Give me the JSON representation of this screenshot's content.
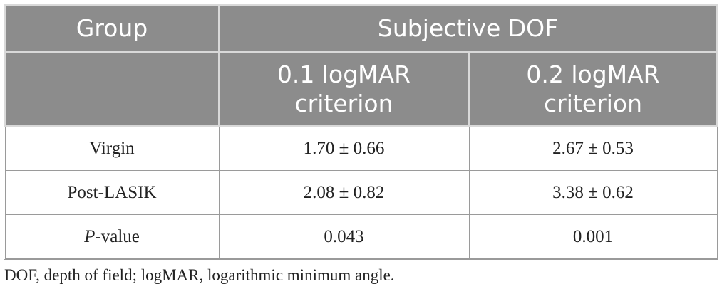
{
  "table": {
    "header": {
      "group_label": "Group",
      "span_label": "Subjective DOF",
      "sub_col_1": "0.1 logMAR criterion",
      "sub_col_2": "0.2 logMAR criterion"
    },
    "rows": [
      {
        "group": "Virgin",
        "col_1": "1.70 ± 0.66",
        "col_2": "2.67 ± 0.53"
      },
      {
        "group": "Post-LASIK",
        "col_1": "2.08 ± 0.82",
        "col_2": "3.38 ± 0.62"
      }
    ],
    "pvalue_row": {
      "label_italic": "P",
      "label_rest": "-value",
      "col_1": "0.043",
      "col_2": "0.001"
    }
  },
  "footnote": "DOF, depth of field; logMAR, logarithmic minimum angle.",
  "colors": {
    "header_bg": "#8c8c8c",
    "header_text": "#ffffff",
    "body_text": "#222222",
    "border": "#9a9a9a"
  }
}
